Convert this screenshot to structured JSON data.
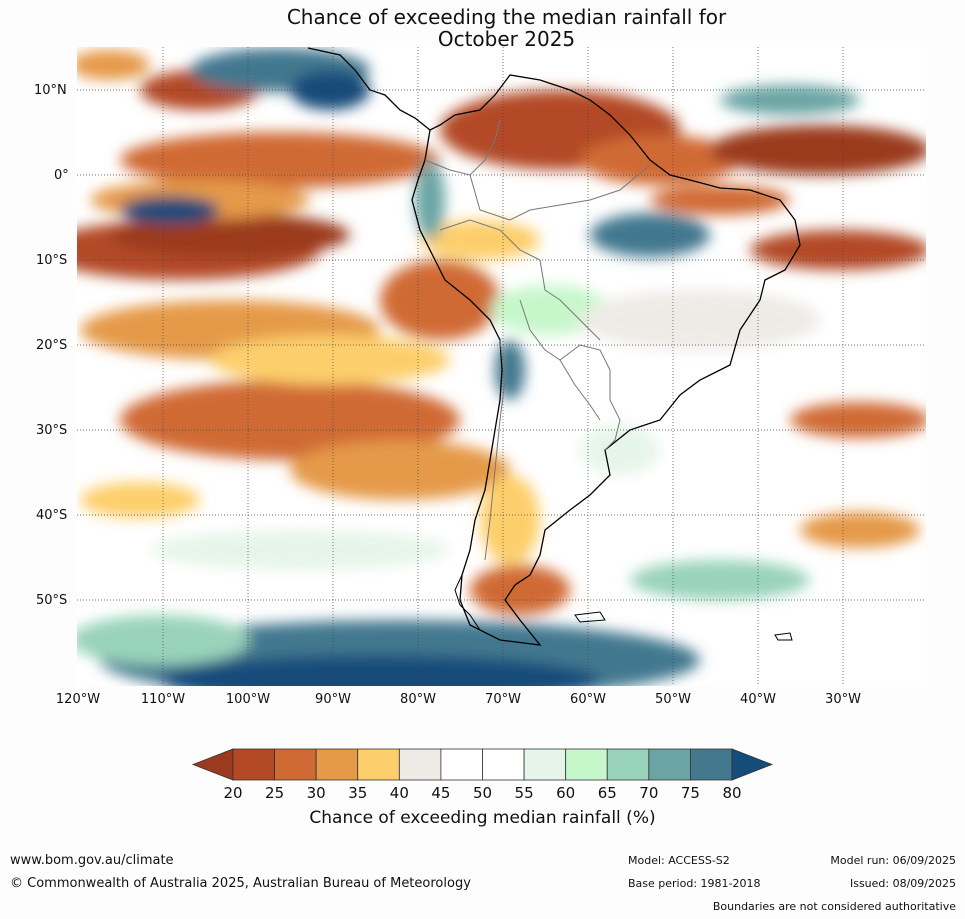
{
  "title": [
    "Chance of exceeding the median rainfall for",
    "October 2025"
  ],
  "lat_labels": [
    "10°N",
    "0°",
    "10°S",
    "20°S",
    "30°S",
    "40°S",
    "50°S"
  ],
  "lon_labels": [
    "120°W",
    "110°W",
    "100°W",
    "90°W",
    "80°W",
    "70°W",
    "60°W",
    "50°W",
    "40°W",
    "30°W"
  ],
  "colorbar": {
    "ticks": [
      "20",
      "25",
      "30",
      "35",
      "40",
      "45",
      "50",
      "55",
      "60",
      "65",
      "70",
      "75",
      "80"
    ],
    "colors": [
      "#9b3a1f",
      "#b34a25",
      "#d06a35",
      "#e59a4a",
      "#fdcf6c",
      "#eeebe6",
      "#ffffff",
      "#ffffff",
      "#e6f5e9",
      "#c6f7cb",
      "#99d3bb",
      "#6aa5a4",
      "#43788f",
      "#144c7a"
    ],
    "label": "Chance of exceeding median rainfall (%)"
  },
  "footer": {
    "url": "www.bom.gov.au/climate",
    "copyright": "© Commonwealth of Australia 2025, Australian Bureau of Meteorology",
    "model": "Model: ACCESS-S2",
    "base_period": "Base period: 1981-2018",
    "model_run": "Model run: 06/09/2025",
    "issued": "Issued: 08/09/2025",
    "disclaimer": "Boundaries are not considered authoritative"
  }
}
